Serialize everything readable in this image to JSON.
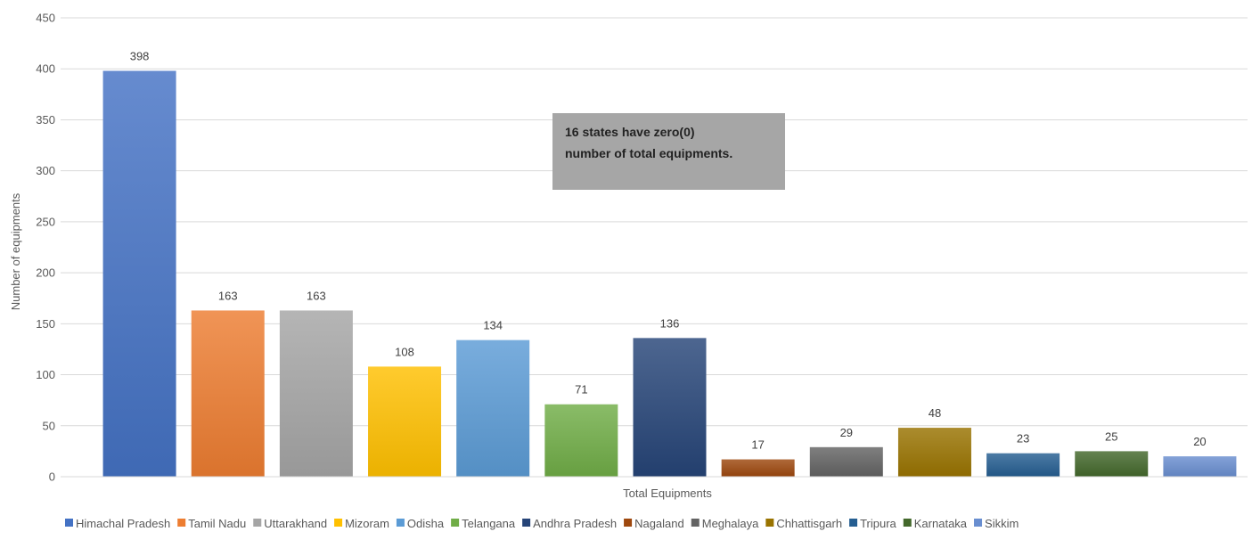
{
  "chart_data": {
    "type": "bar",
    "xlabel": "Total Equipments",
    "ylabel": "Number of equipments",
    "ylim": [
      0,
      450
    ],
    "yticks": [
      0,
      50,
      100,
      150,
      200,
      250,
      300,
      350,
      400,
      450
    ],
    "grid": true,
    "legend_position": "bottom",
    "annotation": {
      "lines": [
        "16 states have zero(0)",
        "number of total equipments."
      ]
    },
    "series": [
      {
        "name": "Himachal Pradesh",
        "value": 398,
        "color": "#4472C4"
      },
      {
        "name": "Tamil Nadu",
        "value": 163,
        "color": "#ED7D31"
      },
      {
        "name": "Uttarakhand",
        "value": 163,
        "color": "#A5A5A5"
      },
      {
        "name": "Mizoram",
        "value": 108,
        "color": "#FFC000"
      },
      {
        "name": "Odisha",
        "value": 134,
        "color": "#5B9BD5"
      },
      {
        "name": "Telangana",
        "value": 71,
        "color": "#70AD47"
      },
      {
        "name": "Andhra Pradesh",
        "value": 136,
        "color": "#264478"
      },
      {
        "name": "Nagaland",
        "value": 17,
        "color": "#9E480E"
      },
      {
        "name": "Meghalaya",
        "value": 29,
        "color": "#636363"
      },
      {
        "name": "Chhattisgarh",
        "value": 48,
        "color": "#997300"
      },
      {
        "name": "Tripura",
        "value": 23,
        "color": "#255E91"
      },
      {
        "name": "Karnataka",
        "value": 25,
        "color": "#43682B"
      },
      {
        "name": "Sikkim",
        "value": 20,
        "color": "#698ED0"
      }
    ]
  }
}
